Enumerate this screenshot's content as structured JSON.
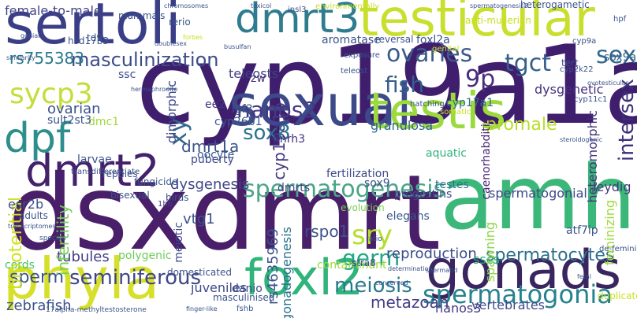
{
  "words": [
    {
      "text": "cyp19a1a",
      "color": "#3f1e6e"
    },
    {
      "text": "dsxdmrt",
      "color": "#4a1f6a"
    },
    {
      "text": "amh",
      "color": "#3cb77a"
    },
    {
      "text": "sertoli",
      "color": "#3a3e86"
    },
    {
      "text": "gonads",
      "color": "#39255f"
    },
    {
      "text": "phyla",
      "color": "#d6e02a"
    },
    {
      "text": "sexual",
      "color": "#3d4a8a"
    },
    {
      "text": "testicular",
      "color": "#c9df2e"
    },
    {
      "text": "testis",
      "color": "#9bd93c"
    },
    {
      "text": "dmrt3",
      "color": "#2e7c8e"
    },
    {
      "text": "dmrt2",
      "color": "#44226b"
    },
    {
      "text": "foxl2",
      "color": "#2fb47b"
    },
    {
      "text": "dpf",
      "color": "#2c8f8c"
    },
    {
      "text": "spermatogenesis",
      "color": "#4aa488"
    },
    {
      "text": "spermatogonia",
      "color": "#26828e"
    },
    {
      "text": "masculinization",
      "color": "#3c4d8a"
    },
    {
      "text": "cyp19a1b",
      "color": "#443a83"
    },
    {
      "text": "sycp3",
      "color": "#c3de3a"
    },
    {
      "text": "sex",
      "color": "#31688e"
    },
    {
      "text": "intersex",
      "color": "#3c2f7a"
    },
    {
      "text": "ovaries",
      "color": "#3d5a8c"
    },
    {
      "text": "tgct",
      "color": "#35608d"
    },
    {
      "text": "9p",
      "color": "#472d7b"
    },
    {
      "text": "fish",
      "color": "#355e8d"
    },
    {
      "text": "sox8",
      "color": "#2c738e"
    },
    {
      "text": "nanos2",
      "color": "#443983"
    },
    {
      "text": "meiosis",
      "color": "#2a788e"
    },
    {
      "text": "sry",
      "color": "#b5de2b"
    },
    {
      "text": "germ",
      "color": "#22a884"
    },
    {
      "text": "xy",
      "color": "#31688e"
    },
    {
      "text": "sperm",
      "color": "#3b528b"
    },
    {
      "text": "seminiferous",
      "color": "#404688"
    },
    {
      "text": "spermatocytes",
      "color": "#2d708e"
    },
    {
      "text": "female-to-male",
      "color": "#414487"
    },
    {
      "text": "rs755383",
      "color": "#2a788e"
    },
    {
      "text": "dmrt1a",
      "color": "#3b528b"
    },
    {
      "text": "dysgenesis",
      "color": "#3f4788"
    },
    {
      "text": "metazoan",
      "color": "#433e85"
    },
    {
      "text": "zebrafish",
      "color": "#3b528b"
    },
    {
      "text": "teleosts",
      "color": "#424086"
    },
    {
      "text": "promale",
      "color": "#b8de29"
    },
    {
      "text": "heteromorphic",
      "color": "#46327e"
    },
    {
      "text": "caenorhabditis",
      "color": "#482878"
    },
    {
      "text": "spermatogonial",
      "color": "#3e4989"
    },
    {
      "text": "reproduction",
      "color": "#3d4e8a"
    },
    {
      "text": "nanos3",
      "color": "#453882"
    },
    {
      "text": "vertebrates",
      "color": "#3e4a89"
    },
    {
      "text": "rspo1",
      "color": "#3b528b"
    },
    {
      "text": "gonadogenesis",
      "color": "#2c738e"
    },
    {
      "text": "rs4635969",
      "color": "#3b528b"
    },
    {
      "text": "vtg1",
      "color": "#39558c"
    },
    {
      "text": "juveniles",
      "color": "#3e4989"
    },
    {
      "text": "danio",
      "color": "#3e4a89"
    },
    {
      "text": "tubules",
      "color": "#433d84"
    },
    {
      "text": "cords",
      "color": "#4ac16d"
    },
    {
      "text": "infertility",
      "color": "#73d056"
    },
    {
      "text": "bipotential",
      "color": "#d0e11c"
    },
    {
      "text": "esr2b",
      "color": "#3b528b"
    },
    {
      "text": "ssc",
      "color": "#3d4d8a"
    },
    {
      "text": "sscs",
      "color": "#26ad81"
    },
    {
      "text": "spawning",
      "color": "#8bd646"
    },
    {
      "text": "feminizing",
      "color": "#9fda3a"
    },
    {
      "text": "sox9a",
      "color": "#34618d"
    },
    {
      "text": "sox9",
      "color": "#3b528b"
    },
    {
      "text": "leydig",
      "color": "#453781"
    },
    {
      "text": "aquatic",
      "color": "#2fb47c"
    },
    {
      "text": "testes",
      "color": "#2c738e"
    },
    {
      "text": "progestins",
      "color": "#3f4889"
    },
    {
      "text": "dysgenetic",
      "color": "#46327e"
    },
    {
      "text": "elegans",
      "color": "#38588c"
    },
    {
      "text": "fertilization",
      "color": "#3e4989"
    },
    {
      "text": "dmrts",
      "color": "#433e85"
    },
    {
      "text": "granulosa",
      "color": "#31688e"
    },
    {
      "text": "cyp17a1",
      "color": "#2e6f8e"
    },
    {
      "text": "ee2",
      "color": "#463480"
    },
    {
      "text": "cyp26b1",
      "color": "#38588c"
    },
    {
      "text": "puberty",
      "color": "#3f4788"
    },
    {
      "text": "igf3",
      "color": "#3b528b"
    },
    {
      "text": "gnrh3",
      "color": "#46307e"
    },
    {
      "text": "dimorphic",
      "color": "#3e4a89"
    },
    {
      "text": "oocyte",
      "color": "#38598c"
    },
    {
      "text": "reptiles",
      "color": "#3b528b"
    },
    {
      "text": "birds",
      "color": "#3b528b"
    },
    {
      "text": "fungicide",
      "color": "#38598c"
    },
    {
      "text": "bisexual",
      "color": "#3b528b"
    },
    {
      "text": "1hb",
      "color": "#433e85"
    },
    {
      "text": "domesticated",
      "color": "#3b528b"
    },
    {
      "text": "masculinised",
      "color": "#3b528b"
    },
    {
      "text": "contaminant",
      "color": "#9bd93c"
    },
    {
      "text": "stra8",
      "color": "#3e4a89"
    },
    {
      "text": "meiotic",
      "color": "#3e4989"
    },
    {
      "text": "polygenic",
      "color": "#6ccd5a"
    },
    {
      "text": "evolution",
      "color": "#7ad151"
    },
    {
      "text": "fshb",
      "color": "#38598c"
    },
    {
      "text": "mammals",
      "color": "#3b528b"
    },
    {
      "text": "hsd17b3",
      "color": "#3b528b"
    },
    {
      "text": "td9",
      "color": "#3b528b"
    },
    {
      "text": "zw",
      "color": "#46337f"
    },
    {
      "text": "larvae",
      "color": "#3b528b"
    },
    {
      "text": "rerio",
      "color": "#38598c"
    },
    {
      "text": "dmc1",
      "color": "#a0da39"
    },
    {
      "text": "aromatase",
      "color": "#3b528b"
    },
    {
      "text": "reversal",
      "color": "#3b528b"
    },
    {
      "text": "foxl2a",
      "color": "#3b528b"
    },
    {
      "text": "ovarian",
      "color": "#3b528b"
    },
    {
      "text": "sult2st3",
      "color": "#3b528b"
    },
    {
      "text": "adults",
      "color": "#3b528b"
    },
    {
      "text": "anti-mullerian",
      "color": "#c8e020"
    },
    {
      "text": "environmentally",
      "color": "#c8e020"
    },
    {
      "text": "heterogametic",
      "color": "#3b528b"
    },
    {
      "text": "hpf",
      "color": "#3b528b"
    },
    {
      "text": "cyp9a",
      "color": "#3b528b"
    },
    {
      "text": "tert",
      "color": "#3b528b"
    },
    {
      "text": "atf7ip",
      "color": "#3b528b"
    },
    {
      "text": "duplicated",
      "color": "#c8e020"
    },
    {
      "text": "insl3",
      "color": "#3b528b"
    },
    {
      "text": "teleost",
      "color": "#3b528b"
    },
    {
      "text": "exposure",
      "color": "#3b528b"
    },
    {
      "text": "somatic",
      "color": "#c8e020"
    },
    {
      "text": "genital",
      "color": "#c8e020"
    },
    {
      "text": "hatching",
      "color": "#3b528b"
    },
    {
      "text": "cyp11c1",
      "color": "#3b528b"
    },
    {
      "text": "cyp2k22",
      "color": "#3b528b"
    },
    {
      "text": "transdifferentiate",
      "color": "#3b528b"
    },
    {
      "text": "de-feminisation",
      "color": "#3b528b"
    },
    {
      "text": "gonial",
      "color": "#3b528b"
    },
    {
      "text": "similarity",
      "color": "#3b528b"
    },
    {
      "text": "transcriptomes",
      "color": "#3b528b"
    },
    {
      "text": "species",
      "color": "#3b528b"
    },
    {
      "text": "17alpha-methyltestosterone",
      "color": "#3b528b"
    },
    {
      "text": "finger-like",
      "color": "#3b528b"
    },
    {
      "text": "ratio",
      "color": "#3b528b"
    },
    {
      "text": "conserved",
      "color": "#3b528b"
    },
    {
      "text": "determination",
      "color": "#3b528b"
    },
    {
      "text": "fetal",
      "color": "#3b528b"
    },
    {
      "text": "spermatogenesis2",
      "color": "#3b528b"
    },
    {
      "text": "chromosomes",
      "color": "#3b528b"
    },
    {
      "text": "busulfan",
      "color": "#3b528b"
    },
    {
      "text": "toxicol",
      "color": "#3b528b"
    },
    {
      "text": "forbes",
      "color": "#c8e020"
    },
    {
      "text": "ovotesticular",
      "color": "#3b528b"
    },
    {
      "text": "steroidogenic",
      "color": "#3b528b"
    },
    {
      "text": "spermatid",
      "color": "#3b528b"
    },
    {
      "text": "doublesex",
      "color": "#3b528b"
    },
    {
      "text": "hermaphrodite",
      "color": "#3b528b"
    }
  ]
}
